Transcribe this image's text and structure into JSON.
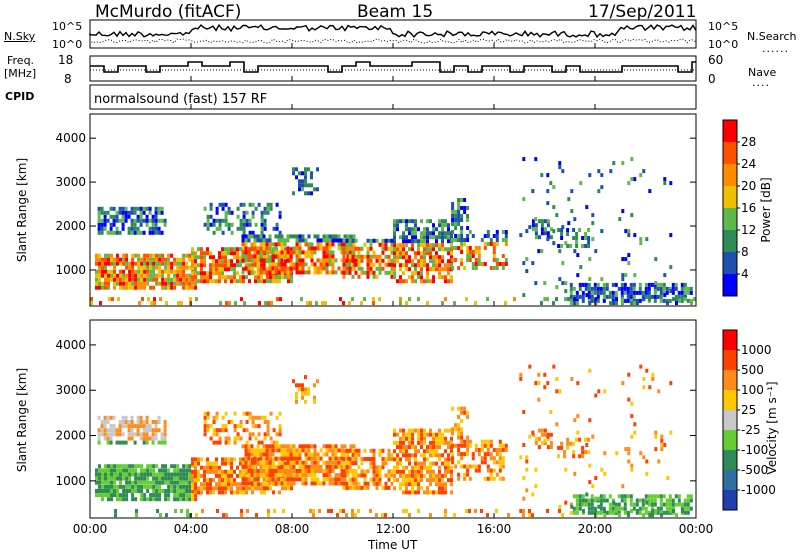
{
  "header": {
    "station": "McMurdo (fitACF)",
    "beam": "Beam 15",
    "date": "17/Sep/2011"
  },
  "noise_panel": {
    "left_label": "N.Sky",
    "right_label": "N.Search",
    "left_ticks": [
      "10^5",
      "10^0"
    ],
    "right_ticks": [
      "10^5",
      "10^0"
    ]
  },
  "freq_panel": {
    "left_label_1": "Freq.",
    "left_label_2": "[MHz]",
    "right_label": "Nave",
    "left_ticks": [
      "18",
      "8"
    ],
    "right_ticks": [
      "60",
      "0"
    ]
  },
  "cpid": {
    "label": "CPID",
    "mode": "normalsound (fast) 157 RF"
  },
  "chart_data": [
    {
      "type": "heatmap",
      "name": "power",
      "ylabel": "Slant Range [km]",
      "yticks": [
        "1000",
        "2000",
        "3000",
        "4000"
      ],
      "ylim": [
        180,
        4550
      ],
      "colorbar_label": "Power [dB]",
      "colorbar_ticks": [
        "4",
        "8",
        "12",
        "16",
        "20",
        "24",
        "28"
      ],
      "colors": [
        "#0000ff",
        "#1f4fb0",
        "#2e8b57",
        "#5fb84a",
        "#f0c000",
        "#ff8c00",
        "#ff5000",
        "#ff0000"
      ]
    },
    {
      "type": "heatmap",
      "name": "velocity",
      "ylabel": "Slant Range [km]",
      "yticks": [
        "1000",
        "2000",
        "3000",
        "4000"
      ],
      "ylim": [
        180,
        4550
      ],
      "colorbar_label": "Velocity [m s⁻¹]",
      "colorbar_ticks": [
        "1000",
        "500",
        "100",
        "25",
        "-25",
        "-100",
        "-500",
        "-1000"
      ],
      "colors": [
        "#2040b0",
        "#2f6fa0",
        "#2e8b57",
        "#66cc33",
        "#c8c8c8",
        "#ffc800",
        "#ff8c1a",
        "#ff4000",
        "#ff0000"
      ]
    }
  ],
  "time_axis": {
    "ticks": [
      "00:00",
      "04:00",
      "08:00",
      "12:00",
      "16:00",
      "20:00",
      "00:00"
    ],
    "label": "Time UT"
  }
}
